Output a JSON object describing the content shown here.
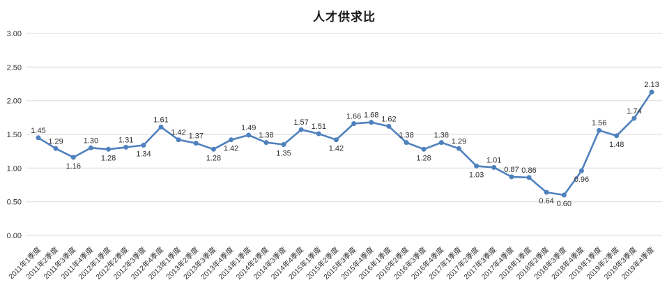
{
  "chart_data": {
    "type": "line",
    "title": "人才供求比",
    "categories": [
      "2011年1季度",
      "2011年2季度",
      "2011年3季度",
      "2011年4季度",
      "2012年1季度",
      "2012年2季度",
      "2012年3季度",
      "2012年4季度",
      "2013年1季度",
      "2013年2季度",
      "2013年3季度",
      "2013年4季度",
      "2014年1季度",
      "2014年2季度",
      "2014年3季度",
      "2014年4季度",
      "2015年1季度",
      "2015年2季度",
      "2015年3季度",
      "2015年4季度",
      "2016年1季度",
      "2016年2季度",
      "2016年3季度",
      "2016年4季度",
      "2017年1季度",
      "2017年2季度",
      "2017年3季度",
      "2017年4季度",
      "2018年1季度",
      "2018年2季度",
      "2018年3季度",
      "2018年4季度",
      "2019年1季度",
      "2019年2季度",
      "2019年3季度",
      "2019年4季度"
    ],
    "values": [
      1.45,
      1.29,
      1.16,
      1.3,
      1.28,
      1.31,
      1.34,
      1.61,
      1.42,
      1.37,
      1.28,
      1.42,
      1.49,
      1.38,
      1.35,
      1.57,
      1.51,
      1.42,
      1.66,
      1.68,
      1.62,
      1.38,
      1.28,
      1.38,
      1.29,
      1.03,
      1.01,
      0.87,
      0.86,
      0.64,
      0.6,
      0.96,
      1.56,
      1.48,
      1.74,
      2.13
    ],
    "data_label_positions": [
      "above",
      "above",
      "below",
      "above",
      "below",
      "above",
      "below",
      "above",
      "above",
      "above",
      "below",
      "below",
      "above",
      "above",
      "below",
      "above",
      "above",
      "below",
      "above",
      "above",
      "above",
      "above",
      "below",
      "above",
      "above",
      "below",
      "above",
      "above",
      "above",
      "below",
      "below",
      "below",
      "above",
      "below",
      "above",
      "above"
    ],
    "xlabel": "",
    "ylabel": "",
    "ylim": [
      0,
      3
    ],
    "ytick_labels": [
      "3.00",
      "2.50",
      "2.00",
      "1.50",
      "1.00",
      "0.50",
      "0.00"
    ],
    "value_decimals": 2,
    "grid": "horizontal",
    "legend": "none",
    "line_color": "#4F81BD",
    "marker_color": "#4F81BD",
    "gridline_color": "#D9D9D9",
    "axis_text_color": "#333333",
    "data_label_color": "#2e2e2e",
    "x_label_rotation_deg": -45
  }
}
